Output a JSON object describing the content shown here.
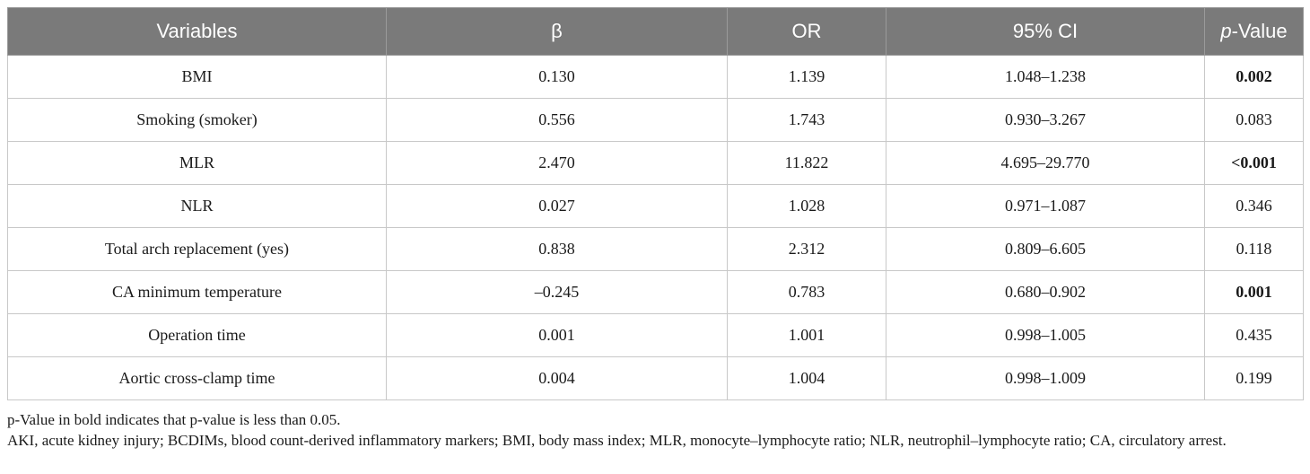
{
  "table": {
    "headers": {
      "variables": "Variables",
      "beta": "β",
      "or": "OR",
      "ci": "95% CI",
      "p_italic": "p",
      "p_rest": "-Value"
    },
    "rows": [
      {
        "variable": "BMI",
        "beta": "0.130",
        "or": "1.139",
        "ci": "1.048–1.238",
        "p": "0.002",
        "p_bold": true
      },
      {
        "variable": "Smoking (smoker)",
        "beta": "0.556",
        "or": "1.743",
        "ci": "0.930–3.267",
        "p": "0.083",
        "p_bold": false
      },
      {
        "variable": "MLR",
        "beta": "2.470",
        "or": "11.822",
        "ci": "4.695–29.770",
        "p": "<0.001",
        "p_bold": true
      },
      {
        "variable": "NLR",
        "beta": "0.027",
        "or": "1.028",
        "ci": "0.971–1.087",
        "p": "0.346",
        "p_bold": false
      },
      {
        "variable": "Total arch replacement (yes)",
        "beta": "0.838",
        "or": "2.312",
        "ci": "0.809–6.605",
        "p": "0.118",
        "p_bold": false
      },
      {
        "variable": "CA minimum temperature",
        "beta": "–0.245",
        "or": "0.783",
        "ci": "0.680–0.902",
        "p": "0.001",
        "p_bold": true
      },
      {
        "variable": "Operation time",
        "beta": "0.001",
        "or": "1.001",
        "ci": "0.998–1.005",
        "p": "0.435",
        "p_bold": false
      },
      {
        "variable": "Aortic cross-clamp time",
        "beta": "0.004",
        "or": "1.004",
        "ci": "0.998–1.009",
        "p": "0.199",
        "p_bold": false
      }
    ]
  },
  "footnotes": {
    "note1": "p-Value in bold indicates that p-value is less than 0.05.",
    "note2": "AKI, acute kidney injury; BCDIMs, blood count-derived inflammatory markers; BMI, body mass index; MLR, monocyte–lymphocyte ratio; NLR, neutrophil–lymphocyte ratio; CA, circulatory arrest."
  }
}
